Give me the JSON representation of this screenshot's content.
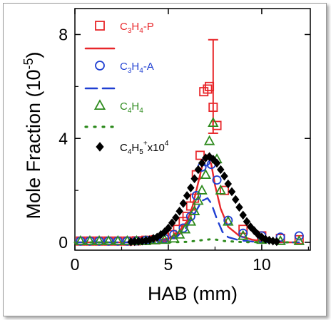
{
  "chart_data": {
    "type": "scatter",
    "xlabel": "HAB (mm)",
    "ylabel": "Mole Fraction (10",
    "ylabel_sup": "-5",
    "ylabel_close": ")",
    "xlim": [
      0,
      12.6
    ],
    "ylim": [
      -0.3,
      9.0
    ],
    "xticks": [
      "0",
      "5",
      "10"
    ],
    "yticks": [
      "0",
      "4",
      "8"
    ],
    "colors": {
      "c3h4p": "#e8262a",
      "c3h4a": "#1f3fd2",
      "c4h4": "#2e8b1e",
      "c4h5": "#000000"
    },
    "legend": {
      "c3h4p": {
        "base": "C",
        "s1": "3",
        "mid": "H",
        "s2": "4",
        "tail": "-P"
      },
      "c3h4a": {
        "base": "C",
        "s1": "3",
        "mid": "H",
        "s2": "4",
        "tail": "-A"
      },
      "c4h4": {
        "base": "C",
        "s1": "4",
        "mid": "H",
        "s2": "4",
        "tail": ""
      },
      "c4h5": {
        "base": "C",
        "s1": "4",
        "mid": "H",
        "s2": "5",
        "sup": "+",
        "tail": "x10",
        "sup2": "4"
      }
    },
    "series": [
      {
        "key": "c3h4p",
        "marker": "square",
        "color": "#e8262a",
        "x": [
          0.3,
          0.8,
          1.3,
          1.8,
          2.3,
          2.8,
          3.3,
          3.8,
          4.3,
          4.8,
          5.2,
          5.5,
          5.8,
          6.0,
          6.2,
          6.4,
          6.5,
          6.7,
          6.9,
          7.1,
          7.2,
          7.4,
          7.6,
          8.0,
          9.0,
          10.0,
          11.0,
          12.0
        ],
        "y": [
          0.05,
          0.05,
          0.05,
          0.05,
          0.05,
          0.05,
          0.06,
          0.08,
          0.1,
          0.2,
          0.3,
          0.5,
          0.8,
          1.0,
          1.4,
          1.7,
          2.6,
          3.35,
          5.8,
          5.9,
          6.0,
          5.2,
          4.5,
          2.0,
          0.5,
          0.25,
          0.15,
          0.1
        ]
      },
      {
        "key": "c3h4p-fit",
        "line": "solid",
        "color": "#e8262a",
        "x": [
          0,
          3,
          4,
          5,
          5.5,
          6,
          6.3,
          6.6,
          6.9,
          7.1,
          7.3,
          7.5,
          7.8,
          8.2,
          8.8,
          9.5,
          10,
          11,
          12
        ],
        "y": [
          0,
          0,
          0.03,
          0.15,
          0.35,
          0.8,
          1.4,
          2.3,
          3.2,
          3.35,
          3.0,
          2.2,
          1.3,
          0.6,
          0.25,
          0.1,
          0.05,
          0,
          0
        ],
        "error_bar": {
          "x": 7.4,
          "y_low": 4.2,
          "y_high": 7.8
        }
      },
      {
        "key": "c3h4a",
        "marker": "circle",
        "color": "#1f3fd2",
        "x": [
          0.3,
          0.8,
          1.3,
          1.8,
          2.3,
          2.8,
          3.3,
          3.8,
          4.3,
          4.8,
          5.3,
          5.8,
          6.2,
          6.5,
          6.8,
          7.0,
          7.3,
          7.6,
          8.2,
          9.0,
          10.0,
          11.0,
          12.0
        ],
        "y": [
          0.05,
          0.05,
          0.05,
          0.05,
          0.05,
          0.05,
          0.06,
          0.08,
          0.1,
          0.15,
          0.3,
          0.55,
          1.0,
          1.8,
          2.9,
          3.1,
          3.0,
          2.4,
          0.85,
          0.35,
          0.25,
          0.2,
          0.25
        ]
      },
      {
        "key": "c3h4a-fit",
        "line": "dashed",
        "color": "#1f3fd2",
        "x": [
          0,
          3,
          4,
          5,
          5.5,
          6,
          6.4,
          6.8,
          7.1,
          7.3,
          7.6,
          7.9,
          8.2,
          8.8,
          9.5,
          10.5,
          12
        ],
        "y": [
          0,
          0,
          0.02,
          0.1,
          0.25,
          0.6,
          1.1,
          1.6,
          1.7,
          1.5,
          0.9,
          0.4,
          0.2,
          0.08,
          0.03,
          0,
          0
        ]
      },
      {
        "key": "c4h4",
        "marker": "triangle",
        "color": "#2e8b1e",
        "x": [
          0.3,
          0.8,
          1.3,
          1.8,
          2.3,
          2.8,
          3.3,
          3.8,
          4.3,
          4.8,
          5.3,
          5.6,
          5.9,
          6.2,
          6.4,
          6.6,
          6.8,
          7.0,
          7.2,
          7.4,
          7.6,
          7.8,
          8.2,
          9.0,
          10.0,
          11.0,
          12.0
        ],
        "y": [
          0.05,
          0.05,
          0.05,
          0.05,
          0.05,
          0.05,
          0.05,
          0.05,
          0.08,
          0.1,
          0.15,
          0.3,
          0.5,
          0.8,
          1.2,
          1.6,
          2.0,
          2.6,
          3.9,
          4.6,
          3.2,
          2.0,
          0.8,
          0.25,
          0.1,
          0.05,
          0.05
        ]
      },
      {
        "key": "c4h4-fit",
        "line": "dotted",
        "color": "#2e8b1e",
        "x": [
          0,
          5,
          6,
          6.5,
          7,
          7.3,
          7.6,
          8,
          9,
          12
        ],
        "y": [
          0,
          0,
          0.02,
          0.06,
          0.1,
          0.12,
          0.1,
          0.05,
          0.01,
          0
        ]
      },
      {
        "key": "c4h5",
        "marker": "diamond",
        "color": "#000000",
        "x": [
          3.0,
          3.2,
          3.4,
          3.6,
          3.8,
          4.0,
          4.2,
          4.4,
          4.6,
          4.8,
          5.0,
          5.2,
          5.4,
          5.6,
          5.8,
          6.0,
          6.2,
          6.4,
          6.6,
          6.8,
          7.0,
          7.2,
          7.4,
          7.6,
          7.8,
          8.0,
          8.2,
          8.4,
          8.6,
          8.8,
          9.0,
          9.2,
          9.4,
          9.6,
          9.8,
          10.0,
          10.2,
          10.4,
          10.6,
          10.8
        ],
        "y": [
          0.02,
          0.03,
          0.04,
          0.05,
          0.07,
          0.1,
          0.15,
          0.2,
          0.3,
          0.4,
          0.55,
          0.75,
          0.95,
          1.2,
          1.5,
          1.8,
          2.1,
          2.45,
          2.8,
          3.05,
          3.25,
          3.3,
          3.2,
          3.05,
          2.8,
          2.55,
          2.25,
          1.95,
          1.65,
          1.35,
          1.05,
          0.8,
          0.6,
          0.45,
          0.3,
          0.2,
          0.12,
          0.08,
          0.05,
          0.03
        ]
      }
    ]
  }
}
